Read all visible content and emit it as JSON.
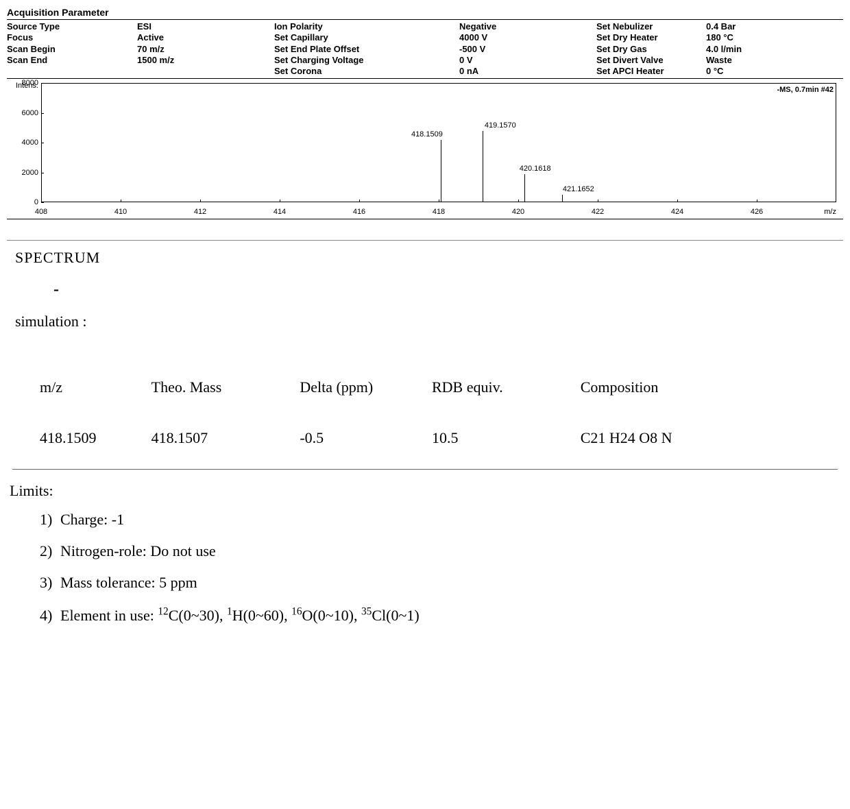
{
  "params_title": "Acquisition Parameter",
  "params": {
    "col1_labels": [
      "Source Type",
      "Focus",
      "Scan Begin",
      "Scan End"
    ],
    "col1_values": [
      "ESI",
      "Active",
      "70 m/z",
      "1500 m/z"
    ],
    "col2_labels": [
      "Ion Polarity",
      "Set Capillary",
      "Set End Plate Offset",
      "Set Charging Voltage",
      "Set Corona"
    ],
    "col2_values": [
      "Negative",
      "4000 V",
      "-500 V",
      "0 V",
      "0 nA"
    ],
    "col3_labels": [
      "Set Nebulizer",
      "Set Dry Heater",
      "Set Dry Gas",
      "Set Divert Valve",
      "Set APCI Heater"
    ],
    "col3_values": [
      "0.4 Bar",
      "180 °C",
      "4.0 l/min",
      "Waste",
      "0 °C"
    ]
  },
  "chart": {
    "y_title": "Intens.",
    "x_title": "m/z",
    "top_right": "-MS, 0.7min #42",
    "xlim": [
      408,
      428
    ],
    "ylim": [
      0,
      8000
    ],
    "y_ticks": [
      0,
      2000,
      4000,
      6000,
      8000
    ],
    "x_ticks": [
      408,
      410,
      412,
      414,
      416,
      418,
      420,
      422,
      424,
      426
    ],
    "peaks": [
      {
        "mz": 418.05,
        "intensity": 4200,
        "label": "418.1509",
        "label_dx": -20
      },
      {
        "mz": 419.1,
        "intensity": 4800,
        "label": "419.1570",
        "label_dx": 26
      },
      {
        "mz": 420.15,
        "intensity": 1900,
        "label": "420.1618",
        "label_dx": 16
      },
      {
        "mz": 421.1,
        "intensity": 500,
        "label": "421.1652",
        "label_dx": 24
      }
    ],
    "peak_color": "#000000",
    "axis_color": "#000000",
    "bg_color": "#ffffff"
  },
  "spectrum_heading": "SPECTRUM",
  "dash": "-",
  "sim_label": "simulation :",
  "table": {
    "headers": [
      "m/z",
      "Theo. Mass",
      "Delta (ppm)",
      "RDB equiv.",
      "Composition"
    ],
    "row": [
      "418.1509",
      "418.1507",
      "-0.5",
      "10.5",
      "C21 H24 O8 N"
    ],
    "col_widths_pct": [
      16,
      18,
      16,
      18,
      32
    ]
  },
  "limits_title": "Limits:",
  "limits": [
    {
      "n": "1)",
      "text": "Charge: -1"
    },
    {
      "n": "2)",
      "text": "Nitrogen-role: Do not use"
    },
    {
      "n": "3)",
      "text": "Mass tolerance: 5 ppm"
    },
    {
      "n": "4)",
      "html": "Element in use: <sup>12</sup>C(0~30), <sup>1</sup>H(0~60), <sup>16</sup>O(0~10), <sup>35</sup>Cl(0~1)"
    }
  ]
}
